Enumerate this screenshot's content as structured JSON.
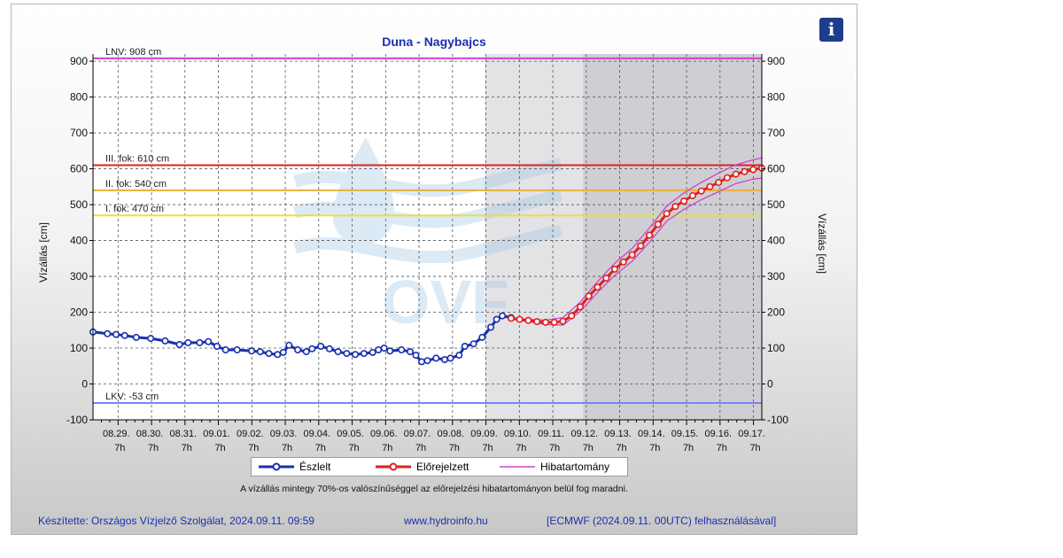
{
  "header": {
    "title": "Duna - Nagybajcs",
    "info_icon": "info-icon",
    "info_label": "i"
  },
  "chart_data": {
    "type": "line",
    "title": "Duna - Nagybajcs",
    "ylabel": "Vízállás [cm]",
    "ylabel_right": "Vízállás [cm]",
    "ylim": [
      -100,
      920
    ],
    "yticks": [
      -100,
      0,
      100,
      200,
      300,
      400,
      500,
      600,
      700,
      800,
      900
    ],
    "grid": true,
    "x_ticks": [
      {
        "date": "08.29.",
        "hour": "7h"
      },
      {
        "date": "08.30.",
        "hour": "7h"
      },
      {
        "date": "08.31.",
        "hour": "7h"
      },
      {
        "date": "09.01.",
        "hour": "7h"
      },
      {
        "date": "09.02.",
        "hour": "7h"
      },
      {
        "date": "09.03.",
        "hour": "7h"
      },
      {
        "date": "09.04.",
        "hour": "7h"
      },
      {
        "date": "09.05.",
        "hour": "7h"
      },
      {
        "date": "09.06.",
        "hour": "7h"
      },
      {
        "date": "09.07.",
        "hour": "7h"
      },
      {
        "date": "09.08.",
        "hour": "7h"
      },
      {
        "date": "09.09.",
        "hour": "7h"
      },
      {
        "date": "09.10.",
        "hour": "7h"
      },
      {
        "date": "09.11.",
        "hour": "7h"
      },
      {
        "date": "09.12.",
        "hour": "7h"
      },
      {
        "date": "09.13.",
        "hour": "7h"
      },
      {
        "date": "09.14.",
        "hour": "7h"
      },
      {
        "date": "09.15.",
        "hour": "7h"
      },
      {
        "date": "09.16.",
        "hour": "7h"
      },
      {
        "date": "09.17.",
        "hour": "7h"
      }
    ],
    "x_range_days": [
      -0.5,
      19
    ],
    "forecast_shade_start_day": 13.1,
    "forecast_dark_shade_start_day": 16.5,
    "thresholds": [
      {
        "label": "LNV: 908 cm",
        "value": 908,
        "color": "#d040d0"
      },
      {
        "label": "III. fok: 610 cm",
        "value": 610,
        "color": "#e02020"
      },
      {
        "label": "II. fok: 540 cm",
        "value": 540,
        "color": "#e8b040"
      },
      {
        "label": "I. fok: 470 cm",
        "value": 470,
        "color": "#e8e040"
      },
      {
        "label": "LKV: -53 cm",
        "value": -53,
        "color": "#8080ff"
      }
    ],
    "series": [
      {
        "name": "Észlelt",
        "color": "#1a2fb0",
        "points": [
          [
            -0.5,
            145
          ],
          [
            0.0,
            140
          ],
          [
            0.3,
            138
          ],
          [
            0.6,
            135
          ],
          [
            1.0,
            130
          ],
          [
            1.5,
            127
          ],
          [
            2.0,
            120
          ],
          [
            2.5,
            110
          ],
          [
            2.8,
            115
          ],
          [
            3.2,
            115
          ],
          [
            3.5,
            118
          ],
          [
            3.8,
            105
          ],
          [
            4.1,
            95
          ],
          [
            4.5,
            95
          ],
          [
            5.0,
            92
          ],
          [
            5.3,
            90
          ],
          [
            5.6,
            85
          ],
          [
            5.9,
            82
          ],
          [
            6.1,
            88
          ],
          [
            6.3,
            108
          ],
          [
            6.6,
            95
          ],
          [
            6.9,
            90
          ],
          [
            7.1,
            98
          ],
          [
            7.4,
            105
          ],
          [
            7.7,
            98
          ],
          [
            8.0,
            90
          ],
          [
            8.3,
            85
          ],
          [
            8.6,
            82
          ],
          [
            8.9,
            85
          ],
          [
            9.2,
            88
          ],
          [
            9.4,
            95
          ],
          [
            9.6,
            100
          ],
          [
            9.8,
            92
          ],
          [
            10.2,
            95
          ],
          [
            10.5,
            90
          ],
          [
            10.7,
            80
          ],
          [
            10.9,
            62
          ],
          [
            11.1,
            65
          ],
          [
            11.4,
            72
          ],
          [
            11.7,
            68
          ],
          [
            11.9,
            72
          ],
          [
            12.2,
            80
          ],
          [
            12.4,
            105
          ],
          [
            12.7,
            112
          ],
          [
            13.0,
            130
          ],
          [
            13.3,
            158
          ],
          [
            13.5,
            180
          ],
          [
            13.7,
            190
          ],
          [
            14.0,
            185
          ]
        ]
      },
      {
        "name": "Előrejelzett",
        "color": "#e02020",
        "points": [
          [
            14.0,
            183
          ],
          [
            14.3,
            180
          ],
          [
            14.6,
            177
          ],
          [
            14.9,
            174
          ],
          [
            15.2,
            172
          ],
          [
            15.5,
            172
          ],
          [
            15.8,
            175
          ],
          [
            16.1,
            190
          ],
          [
            16.4,
            215
          ],
          [
            16.7,
            245
          ],
          [
            17.0,
            270
          ],
          [
            17.3,
            295
          ],
          [
            17.6,
            320
          ],
          [
            17.9,
            340
          ],
          [
            18.2,
            360
          ],
          [
            18.5,
            385
          ],
          [
            18.8,
            415
          ],
          [
            19.1,
            445
          ],
          [
            19.4,
            475
          ],
          [
            19.7,
            495
          ],
          [
            20.0,
            510
          ],
          [
            20.3,
            525
          ],
          [
            20.6,
            538
          ],
          [
            20.9,
            550
          ],
          [
            21.2,
            562
          ],
          [
            21.5,
            575
          ],
          [
            21.8,
            585
          ],
          [
            22.1,
            592
          ],
          [
            22.4,
            598
          ],
          [
            22.7,
            602
          ]
        ]
      },
      {
        "name": "Hibatartomány",
        "color": "#cc44cc",
        "upper": [
          [
            14.0,
            185
          ],
          [
            14.6,
            180
          ],
          [
            15.2,
            178
          ],
          [
            15.8,
            185
          ],
          [
            16.4,
            228
          ],
          [
            17.0,
            285
          ],
          [
            17.6,
            337
          ],
          [
            18.2,
            378
          ],
          [
            18.8,
            435
          ],
          [
            19.4,
            496
          ],
          [
            20.0,
            533
          ],
          [
            20.6,
            562
          ],
          [
            21.2,
            588
          ],
          [
            21.8,
            611
          ],
          [
            22.4,
            625
          ],
          [
            22.7,
            630
          ]
        ],
        "lower": [
          [
            14.0,
            181
          ],
          [
            14.6,
            174
          ],
          [
            15.2,
            166
          ],
          [
            15.8,
            164
          ],
          [
            16.4,
            202
          ],
          [
            17.0,
            255
          ],
          [
            17.6,
            303
          ],
          [
            18.2,
            342
          ],
          [
            18.8,
            395
          ],
          [
            19.4,
            454
          ],
          [
            20.0,
            487
          ],
          [
            20.6,
            514
          ],
          [
            21.2,
            536
          ],
          [
            21.8,
            559
          ],
          [
            22.4,
            571
          ],
          [
            22.7,
            574
          ]
        ]
      }
    ]
  },
  "legend": {
    "observed": "Észlelt",
    "forecast": "Előrejelzett",
    "error_band": "Hibatartomány"
  },
  "note": "A vízállás mintegy 70%-os valószínűséggel az előrejelzési hibatartományon belül fog maradni.",
  "footer": {
    "author": "Készítette: Országos Vízjelző Szolgálat, 2024.09.11. 09:59",
    "url": "www.hydroinfo.hu",
    "model": "[ECMWF (2024.09.11. 00UTC) felhasználásával]"
  },
  "watermark": {
    "text": "OVF"
  }
}
